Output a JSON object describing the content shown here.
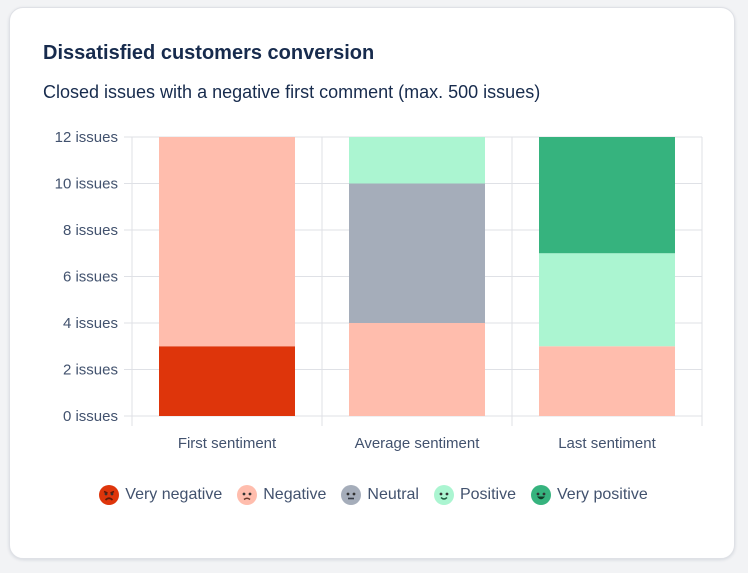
{
  "card": {
    "title": "Dissatisfied customers conversion",
    "subtitle": "Closed issues with a negative first comment (max. 500 issues)"
  },
  "chart_data": {
    "type": "bar",
    "stacked": true,
    "categories": [
      "First sentiment",
      "Average sentiment",
      "Last sentiment"
    ],
    "y_tick_values": [
      0,
      2,
      4,
      6,
      8,
      10,
      12
    ],
    "y_tick_labels": [
      "0 issues",
      "2 issues",
      "4 issues",
      "6 issues",
      "8 issues",
      "10 issues",
      "12 issues"
    ],
    "ylim": [
      0,
      12
    ],
    "grid": true,
    "legend_position": "bottom",
    "series": [
      {
        "name": "Very negative",
        "color": "#de350b",
        "icon": "very-negative-face-icon",
        "values": [
          3,
          0,
          0
        ]
      },
      {
        "name": "Negative",
        "color": "#ffbdad",
        "icon": "negative-face-icon",
        "values": [
          9,
          4,
          3
        ]
      },
      {
        "name": "Neutral",
        "color": "#a5adba",
        "icon": "neutral-face-icon",
        "values": [
          0,
          6,
          0
        ]
      },
      {
        "name": "Positive",
        "color": "#abf5d1",
        "icon": "positive-face-icon",
        "values": [
          0,
          2,
          4
        ]
      },
      {
        "name": "Very positive",
        "color": "#36b37e",
        "icon": "very-positive-face-icon",
        "values": [
          0,
          0,
          5
        ]
      }
    ]
  }
}
